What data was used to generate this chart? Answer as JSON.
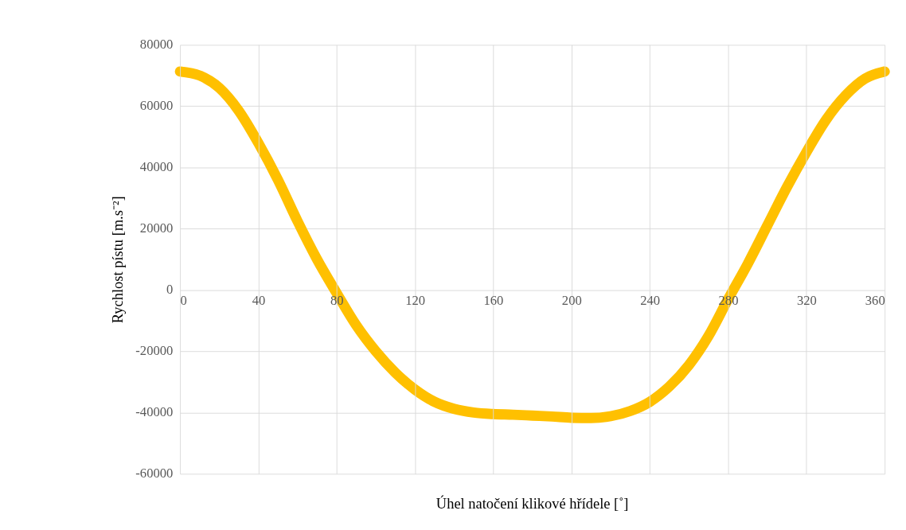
{
  "chart_data": {
    "type": "line",
    "xlabel": "Úhel natočení klikové hřídele [˚]",
    "ylabel": "Rychlost pístu [m.s⁻²]",
    "x": [
      0,
      10,
      20,
      30,
      40,
      50,
      60,
      70,
      80,
      90,
      100,
      110,
      120,
      130,
      140,
      150,
      160,
      170,
      180,
      190,
      200,
      210,
      220,
      230,
      240,
      250,
      260,
      270,
      280,
      290,
      300,
      310,
      320,
      330,
      340,
      350,
      360
    ],
    "series": [
      {
        "color": "#ffc000",
        "values": [
          71300,
          70000,
          66000,
          58500,
          48000,
          36000,
          22500,
          10000,
          -1000,
          -11500,
          -20000,
          -27000,
          -32500,
          -36500,
          -38800,
          -40000,
          -40500,
          -40700,
          -41000,
          -41300,
          -41700,
          -41800,
          -41200,
          -39500,
          -36500,
          -31500,
          -24500,
          -15000,
          -3000,
          8500,
          21000,
          33500,
          45000,
          55500,
          63500,
          69000,
          71300
        ]
      }
    ],
    "xlim": [
      0,
      360
    ],
    "xticks": [
      0,
      40,
      80,
      120,
      160,
      200,
      240,
      280,
      320,
      360
    ],
    "ylim": [
      -60000,
      80000
    ],
    "yticks": [
      -60000,
      -40000,
      -20000,
      0,
      20000,
      40000,
      60000,
      80000
    ],
    "grid": true,
    "line_style": "solid"
  }
}
